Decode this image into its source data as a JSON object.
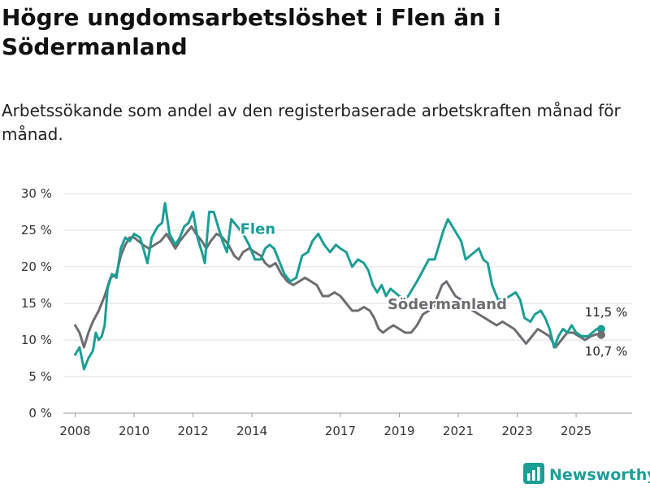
{
  "page": {
    "title": "Högre ungdomsarbetslöshet i Flen än i Södermanland",
    "subtitle": "Arbetssökande som andel av den registerbaserade arbetskraften månad för månad."
  },
  "brand": {
    "name": "Newsworthy",
    "icon": "bar-chart-logo-icon",
    "color": "#1b9e96"
  },
  "chart_data": {
    "type": "line",
    "title": "",
    "xlabel": "",
    "ylabel": "",
    "xlim": [
      2007.6,
      2026.9
    ],
    "ylim": [
      0,
      30
    ],
    "y_ticks": [
      0,
      5,
      10,
      15,
      20,
      25,
      30
    ],
    "y_tick_labels": [
      "0 %",
      "5 %",
      "10 %",
      "15 %",
      "20 %",
      "25 %",
      "30 %"
    ],
    "x_ticks": [
      2008,
      2010,
      2012,
      2014,
      2017,
      2019,
      2021,
      2023,
      2025
    ],
    "x_tick_labels": [
      "2008",
      "2010",
      "2012",
      "2014",
      "2017",
      "2019",
      "2021",
      "2023",
      "2025"
    ],
    "grid": true,
    "series": [
      {
        "name": "Flen",
        "color": "#1b9e96",
        "end_label": "11,5 %",
        "points": [
          [
            2008.0,
            8.0
          ],
          [
            2008.15,
            9.0
          ],
          [
            2008.3,
            6.0
          ],
          [
            2008.45,
            7.5
          ],
          [
            2008.6,
            8.5
          ],
          [
            2008.7,
            11.0
          ],
          [
            2008.8,
            10.0
          ],
          [
            2008.9,
            10.5
          ],
          [
            2009.0,
            12.0
          ],
          [
            2009.1,
            17.0
          ],
          [
            2009.25,
            19.0
          ],
          [
            2009.4,
            18.5
          ],
          [
            2009.55,
            22.5
          ],
          [
            2009.7,
            24.0
          ],
          [
            2009.85,
            23.5
          ],
          [
            2010.0,
            24.5
          ],
          [
            2010.2,
            24.0
          ],
          [
            2010.35,
            22.0
          ],
          [
            2010.45,
            20.5
          ],
          [
            2010.6,
            24.0
          ],
          [
            2010.8,
            25.5
          ],
          [
            2010.95,
            26.0
          ],
          [
            2011.05,
            28.7
          ],
          [
            2011.2,
            24.5
          ],
          [
            2011.4,
            23.0
          ],
          [
            2011.55,
            24.0
          ],
          [
            2011.7,
            25.5
          ],
          [
            2011.85,
            26.0
          ],
          [
            2012.0,
            27.5
          ],
          [
            2012.15,
            24.0
          ],
          [
            2012.3,
            22.0
          ],
          [
            2012.4,
            20.5
          ],
          [
            2012.55,
            27.5
          ],
          [
            2012.7,
            27.5
          ],
          [
            2012.85,
            25.5
          ],
          [
            2013.0,
            23.5
          ],
          [
            2013.15,
            22.0
          ],
          [
            2013.3,
            26.5
          ],
          [
            2013.5,
            25.5
          ],
          [
            2013.7,
            24.5
          ],
          [
            2013.9,
            23.0
          ],
          [
            2014.1,
            21.0
          ],
          [
            2014.3,
            21.0
          ],
          [
            2014.45,
            22.5
          ],
          [
            2014.6,
            23.0
          ],
          [
            2014.75,
            22.5
          ],
          [
            2014.9,
            21.0
          ],
          [
            2015.1,
            19.0
          ],
          [
            2015.3,
            18.0
          ],
          [
            2015.5,
            18.5
          ],
          [
            2015.7,
            21.5
          ],
          [
            2015.9,
            22.0
          ],
          [
            2016.05,
            23.5
          ],
          [
            2016.25,
            24.5
          ],
          [
            2016.45,
            23.0
          ],
          [
            2016.65,
            22.0
          ],
          [
            2016.85,
            23.0
          ],
          [
            2017.0,
            22.5
          ],
          [
            2017.2,
            22.0
          ],
          [
            2017.4,
            20.0
          ],
          [
            2017.6,
            21.0
          ],
          [
            2017.8,
            20.5
          ],
          [
            2017.95,
            19.5
          ],
          [
            2018.1,
            17.5
          ],
          [
            2018.25,
            16.5
          ],
          [
            2018.4,
            17.5
          ],
          [
            2018.55,
            16.0
          ],
          [
            2018.7,
            17.0
          ],
          [
            2018.85,
            16.5
          ],
          [
            2019.0,
            16.0
          ],
          [
            2019.15,
            15.5
          ],
          [
            2019.3,
            16.0
          ],
          [
            2019.45,
            17.0
          ],
          [
            2019.6,
            18.0
          ],
          [
            2019.8,
            19.5
          ],
          [
            2020.0,
            21.0
          ],
          [
            2020.2,
            21.0
          ],
          [
            2020.35,
            23.0
          ],
          [
            2020.5,
            25.0
          ],
          [
            2020.65,
            26.5
          ],
          [
            2020.8,
            25.5
          ],
          [
            2020.95,
            24.5
          ],
          [
            2021.1,
            23.5
          ],
          [
            2021.25,
            21.0
          ],
          [
            2021.4,
            21.5
          ],
          [
            2021.55,
            22.0
          ],
          [
            2021.7,
            22.5
          ],
          [
            2021.85,
            21.0
          ],
          [
            2022.0,
            20.5
          ],
          [
            2022.15,
            17.5
          ],
          [
            2022.35,
            15.5
          ],
          [
            2022.55,
            15.5
          ],
          [
            2022.75,
            16.0
          ],
          [
            2022.95,
            16.5
          ],
          [
            2023.1,
            15.5
          ],
          [
            2023.25,
            13.0
          ],
          [
            2023.45,
            12.5
          ],
          [
            2023.6,
            13.5
          ],
          [
            2023.8,
            14.0
          ],
          [
            2023.95,
            13.0
          ],
          [
            2024.1,
            11.5
          ],
          [
            2024.25,
            9.0
          ],
          [
            2024.4,
            10.5
          ],
          [
            2024.55,
            11.5
          ],
          [
            2024.7,
            11.0
          ],
          [
            2024.85,
            12.0
          ],
          [
            2025.0,
            11.0
          ],
          [
            2025.2,
            10.5
          ],
          [
            2025.4,
            10.5
          ],
          [
            2025.55,
            11.0
          ],
          [
            2025.7,
            11.5
          ],
          [
            2025.85,
            11.5
          ]
        ]
      },
      {
        "name": "Södermanland",
        "color": "#6d6e71",
        "end_label": "10,7 %",
        "points": [
          [
            2008.0,
            12.0
          ],
          [
            2008.15,
            11.0
          ],
          [
            2008.3,
            9.0
          ],
          [
            2008.45,
            11.0
          ],
          [
            2008.6,
            12.5
          ],
          [
            2008.8,
            14.0
          ],
          [
            2009.0,
            16.0
          ],
          [
            2009.2,
            18.5
          ],
          [
            2009.4,
            19.0
          ],
          [
            2009.55,
            21.5
          ],
          [
            2009.7,
            23.0
          ],
          [
            2009.85,
            24.0
          ],
          [
            2010.0,
            24.0
          ],
          [
            2010.15,
            23.5
          ],
          [
            2010.3,
            23.0
          ],
          [
            2010.5,
            22.5
          ],
          [
            2010.7,
            23.0
          ],
          [
            2010.9,
            23.5
          ],
          [
            2011.1,
            24.5
          ],
          [
            2011.25,
            23.5
          ],
          [
            2011.4,
            22.5
          ],
          [
            2011.55,
            23.5
          ],
          [
            2011.75,
            24.5
          ],
          [
            2011.95,
            25.5
          ],
          [
            2012.1,
            24.5
          ],
          [
            2012.3,
            23.5
          ],
          [
            2012.45,
            22.5
          ],
          [
            2012.6,
            23.5
          ],
          [
            2012.8,
            24.5
          ],
          [
            2013.0,
            24.0
          ],
          [
            2013.2,
            23.0
          ],
          [
            2013.4,
            21.5
          ],
          [
            2013.55,
            21.0
          ],
          [
            2013.7,
            22.0
          ],
          [
            2013.9,
            22.5
          ],
          [
            2014.1,
            22.0
          ],
          [
            2014.3,
            21.5
          ],
          [
            2014.45,
            20.5
          ],
          [
            2014.6,
            20.0
          ],
          [
            2014.8,
            20.5
          ],
          [
            2015.0,
            19.0
          ],
          [
            2015.2,
            18.0
          ],
          [
            2015.4,
            17.5
          ],
          [
            2015.6,
            18.0
          ],
          [
            2015.8,
            18.5
          ],
          [
            2016.0,
            18.0
          ],
          [
            2016.2,
            17.5
          ],
          [
            2016.4,
            16.0
          ],
          [
            2016.6,
            16.0
          ],
          [
            2016.8,
            16.5
          ],
          [
            2017.0,
            16.0
          ],
          [
            2017.2,
            15.0
          ],
          [
            2017.4,
            14.0
          ],
          [
            2017.6,
            14.0
          ],
          [
            2017.8,
            14.5
          ],
          [
            2018.0,
            14.0
          ],
          [
            2018.15,
            13.0
          ],
          [
            2018.3,
            11.5
          ],
          [
            2018.45,
            11.0
          ],
          [
            2018.6,
            11.5
          ],
          [
            2018.8,
            12.0
          ],
          [
            2019.0,
            11.5
          ],
          [
            2019.2,
            11.0
          ],
          [
            2019.4,
            11.0
          ],
          [
            2019.6,
            12.0
          ],
          [
            2019.8,
            13.5
          ],
          [
            2020.0,
            14.0
          ],
          [
            2020.15,
            14.5
          ],
          [
            2020.3,
            16.0
          ],
          [
            2020.45,
            17.5
          ],
          [
            2020.6,
            18.0
          ],
          [
            2020.75,
            17.0
          ],
          [
            2020.9,
            16.0
          ],
          [
            2021.1,
            15.5
          ],
          [
            2021.3,
            14.5
          ],
          [
            2021.5,
            14.0
          ],
          [
            2021.7,
            13.5
          ],
          [
            2021.9,
            13.0
          ],
          [
            2022.1,
            12.5
          ],
          [
            2022.3,
            12.0
          ],
          [
            2022.5,
            12.5
          ],
          [
            2022.7,
            12.0
          ],
          [
            2022.9,
            11.5
          ],
          [
            2023.1,
            10.5
          ],
          [
            2023.3,
            9.5
          ],
          [
            2023.5,
            10.5
          ],
          [
            2023.7,
            11.5
          ],
          [
            2023.9,
            11.0
          ],
          [
            2024.1,
            10.5
          ],
          [
            2024.3,
            9.0
          ],
          [
            2024.5,
            10.0
          ],
          [
            2024.7,
            11.0
          ],
          [
            2024.9,
            11.0
          ],
          [
            2025.1,
            10.5
          ],
          [
            2025.3,
            10.0
          ],
          [
            2025.5,
            10.5
          ],
          [
            2025.7,
            10.8
          ],
          [
            2025.85,
            10.7
          ]
        ]
      }
    ],
    "annotations": [
      {
        "text": "Flen",
        "series": "Flen",
        "at_x": 2013.6,
        "at_y": 24.5,
        "color": "#1b9e96"
      },
      {
        "text": "Södermanland",
        "series": "Södermanland",
        "at_x": 2018.6,
        "at_y": 14.2,
        "color": "#6d6e71"
      }
    ]
  }
}
